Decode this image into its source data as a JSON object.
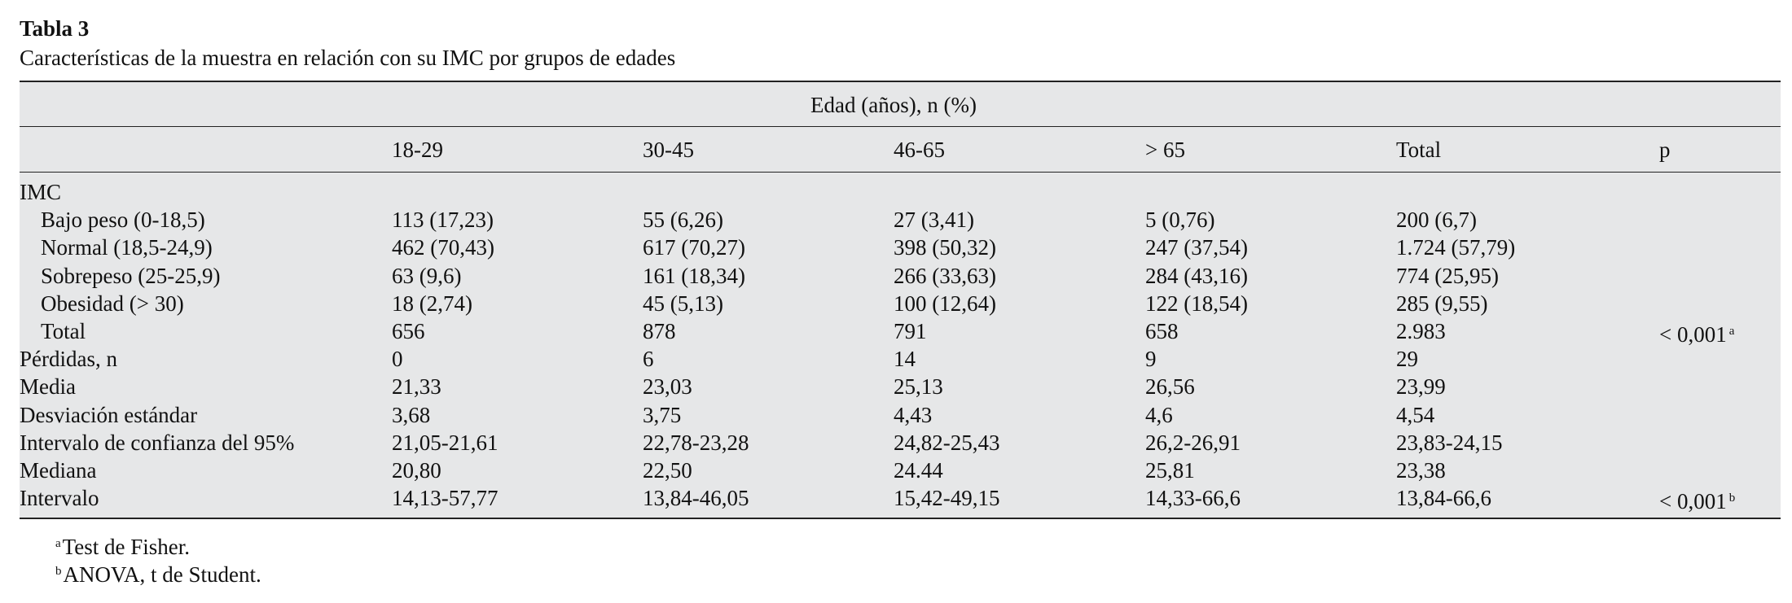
{
  "title": "Tabla 3",
  "caption": "Características de la muestra en relación con su IMC por grupos de edades",
  "table": {
    "group_header": "Edad (años), n (%)",
    "columns": [
      "18-29",
      "30-45",
      "46-65",
      "> 65",
      "Total",
      "p"
    ],
    "sections": [
      {
        "label": "IMC",
        "rows": [
          {
            "label": "Bajo peso (0-18,5)",
            "cells": [
              "113 (17,23)",
              "55 (6,26)",
              "27 (3,41)",
              "5 (0,76)",
              "200 (6,7)"
            ]
          },
          {
            "label": "Normal (18,5-24,9)",
            "cells": [
              "462 (70,43)",
              "617 (70,27)",
              "398 (50,32)",
              "247 (37,54)",
              "1.724 (57,79)"
            ]
          },
          {
            "label": "Sobrepeso (25-25,9)",
            "cells": [
              "63 (9,6)",
              "161 (18,34)",
              "266 (33,63)",
              "284 (43,16)",
              "774 (25,95)"
            ]
          },
          {
            "label": "Obesidad (> 30)",
            "cells": [
              "18 (2,74)",
              "45 (5,13)",
              "100 (12,64)",
              "122 (18,54)",
              "285 (9,55)"
            ]
          },
          {
            "label": "Total",
            "cells": [
              "656",
              "878",
              "791",
              "658",
              "2.983"
            ],
            "p": {
              "text": "< 0,001",
              "note": "a"
            }
          }
        ]
      }
    ],
    "rows": [
      {
        "label": "Pérdidas, n",
        "cells": [
          "0",
          "6",
          "14",
          "9",
          "29"
        ]
      },
      {
        "label": "Media",
        "cells": [
          "21,33",
          "23,03",
          "25,13",
          "26,56",
          "23,99"
        ]
      },
      {
        "label": "Desviación estándar",
        "cells": [
          "3,68",
          "3,75",
          "4,43",
          "4,6",
          "4,54"
        ]
      },
      {
        "label": "Intervalo de confianza del 95%",
        "cells": [
          "21,05-21,61",
          "22,78-23,28",
          "24,82-25,43",
          "26,2-26,91",
          "23,83-24,15"
        ]
      },
      {
        "label": "Mediana",
        "cells": [
          "20,80",
          "22,50",
          "24.44",
          "25,81",
          "23,38"
        ]
      },
      {
        "label": "Intervalo",
        "cells": [
          "14,13-57,77",
          "13,84-46,05",
          "15,42-49,15",
          "14,33-66,6",
          "13,84-66,6"
        ],
        "p": {
          "text": "< 0,001",
          "note": "b"
        }
      }
    ]
  },
  "footnotes": [
    {
      "mark": "a",
      "text": "Test de Fisher."
    },
    {
      "mark": "b",
      "text": "ANOVA, t de Student."
    }
  ]
}
